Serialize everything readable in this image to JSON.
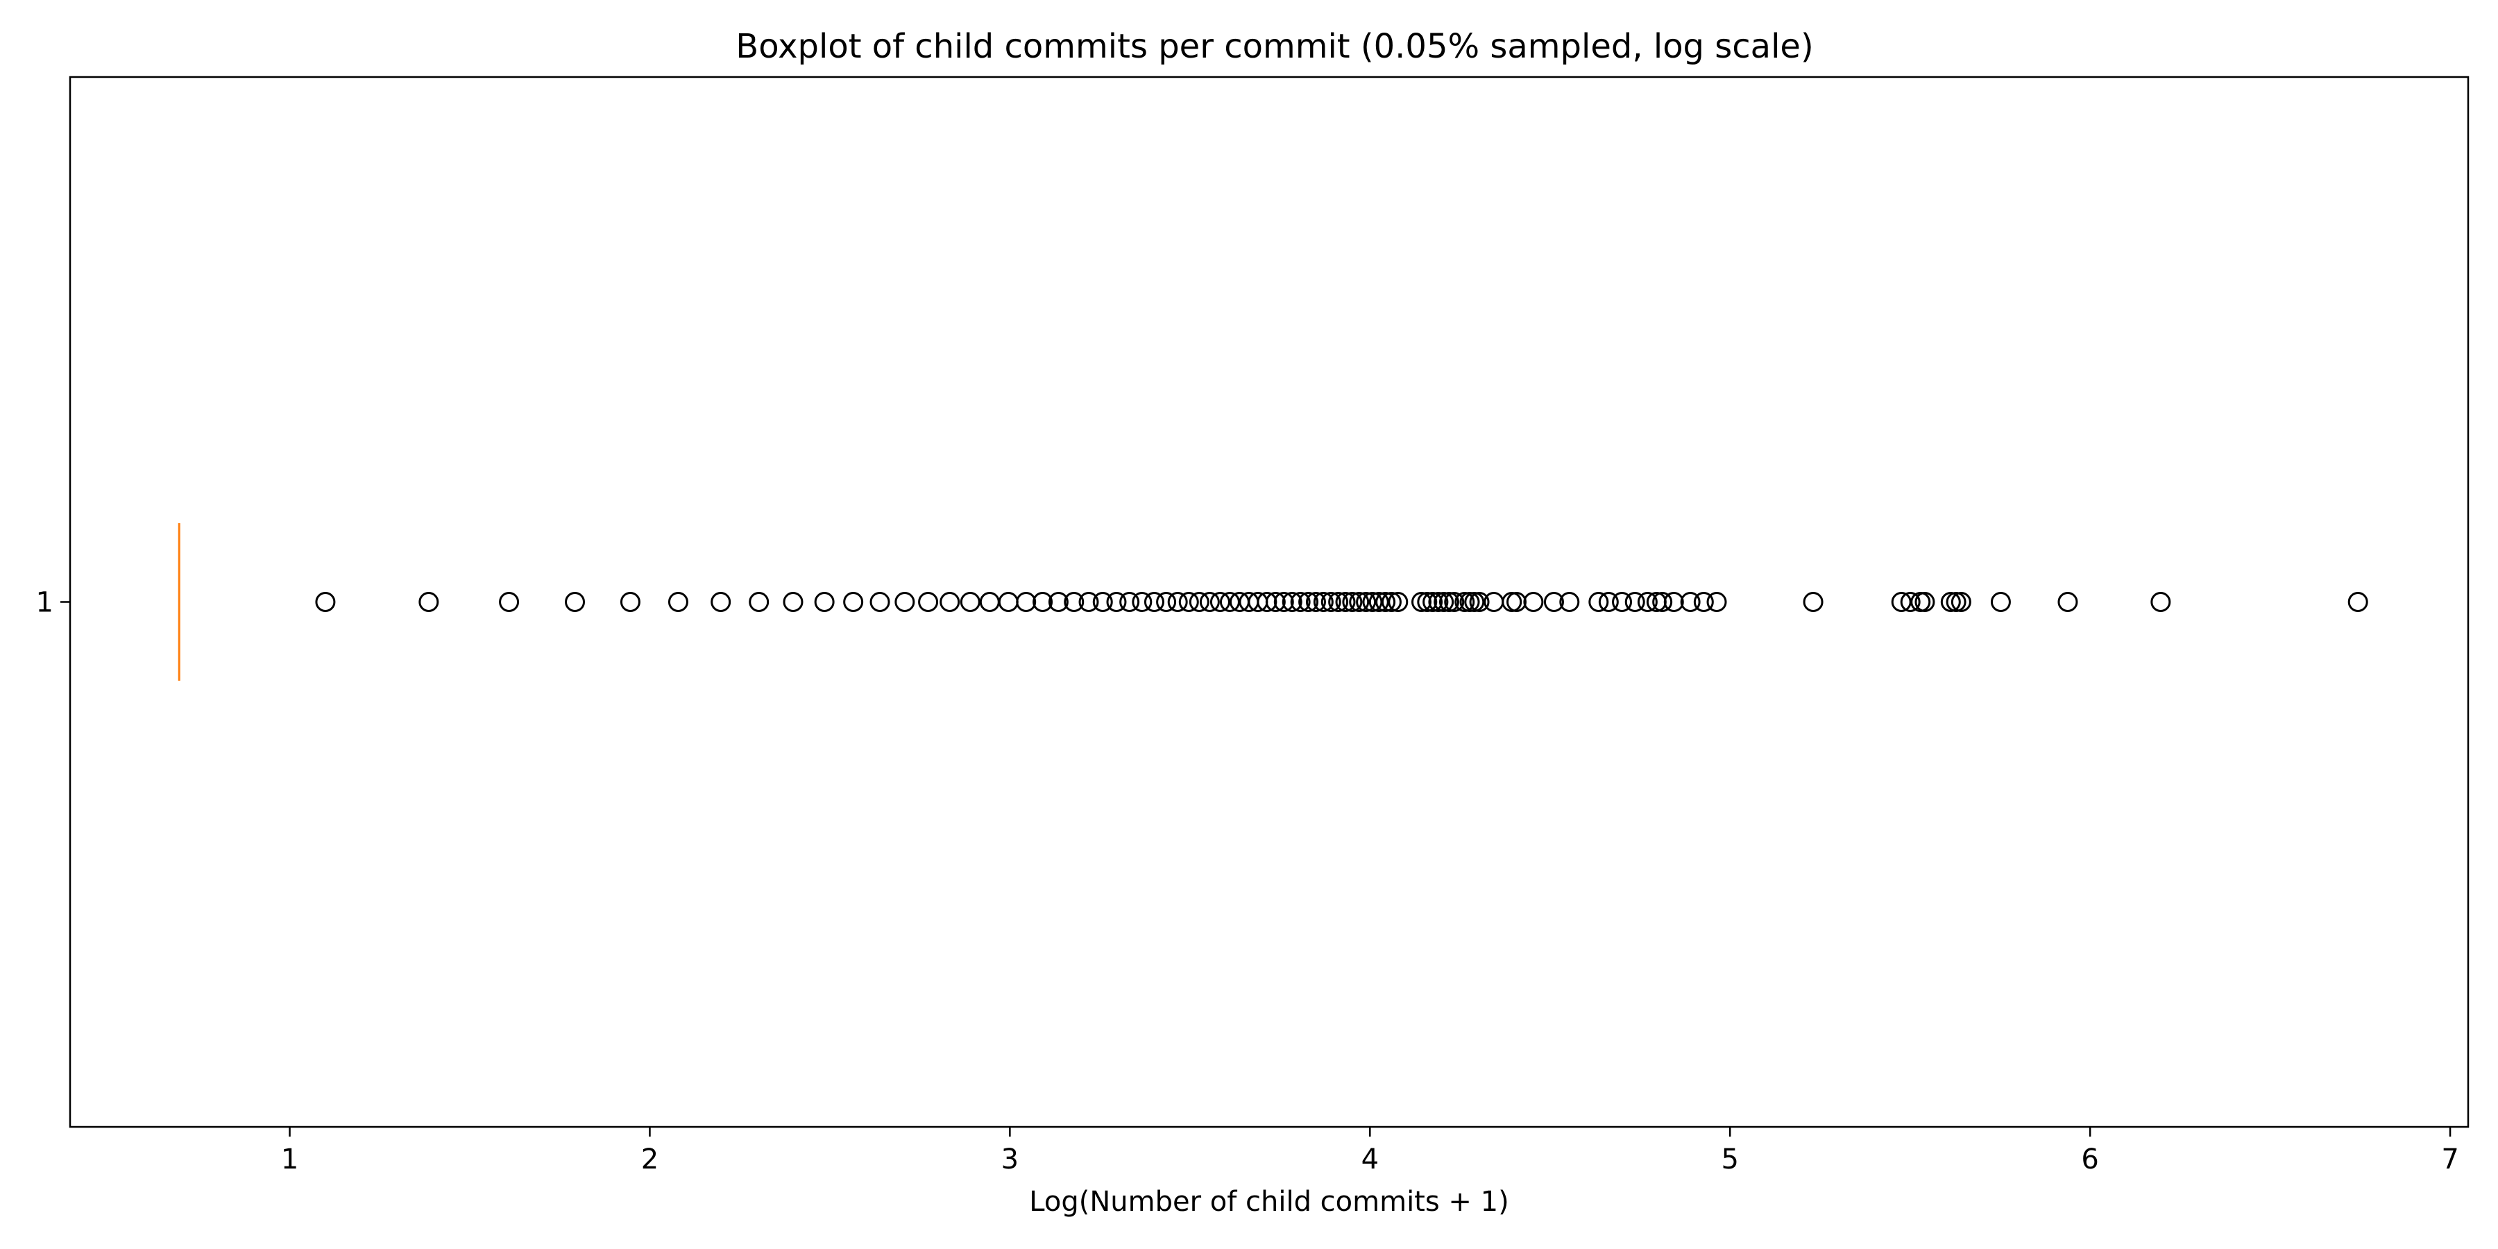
{
  "chart_data": {
    "type": "boxplot",
    "title": "Boxplot of child commits per commit (0.05% sampled, log scale)",
    "xlabel": "Log(Number of child commits + 1)",
    "ylabel": "",
    "orientation": "horizontal",
    "categories": [
      "1"
    ],
    "xlim": [
      0.39,
      7.05
    ],
    "x_ticks": [
      "1",
      "2",
      "3",
      "4",
      "5",
      "6",
      "7"
    ],
    "x_tick_values": [
      1,
      2,
      3,
      4,
      5,
      6,
      7
    ],
    "grid": false,
    "box": {
      "median": 0.693,
      "q1": 0.693,
      "q3": 0.693,
      "whisker_low": 0.693,
      "whisker_high": 0.693
    },
    "median_color": "#ff7f0e",
    "flier_color": "#000000",
    "fliers": [
      1.099,
      1.386,
      1.609,
      1.792,
      1.946,
      2.079,
      2.197,
      2.303,
      2.398,
      2.485,
      2.565,
      2.639,
      2.708,
      2.773,
      2.833,
      2.89,
      2.944,
      2.996,
      3.045,
      3.091,
      3.135,
      3.178,
      3.219,
      3.258,
      3.296,
      3.332,
      3.367,
      3.401,
      3.434,
      3.466,
      3.497,
      3.526,
      3.555,
      3.584,
      3.611,
      3.638,
      3.664,
      3.689,
      3.714,
      3.738,
      3.761,
      3.784,
      3.807,
      3.829,
      3.85,
      3.871,
      3.892,
      3.912,
      3.932,
      3.951,
      3.97,
      3.989,
      4.007,
      4.025,
      4.043,
      4.06,
      4.078,
      4.143,
      4.159,
      4.174,
      4.19,
      4.205,
      4.22,
      4.234,
      4.263,
      4.277,
      4.29,
      4.304,
      4.344,
      4.394,
      4.407,
      4.454,
      4.511,
      4.554,
      4.635,
      4.663,
      4.7,
      4.736,
      4.771,
      4.796,
      4.812,
      4.844,
      4.89,
      4.927,
      4.963,
      5.231,
      5.476,
      5.501,
      5.529,
      5.541,
      5.613,
      5.628,
      5.642,
      5.752,
      5.938,
      6.196,
      6.744
    ]
  }
}
